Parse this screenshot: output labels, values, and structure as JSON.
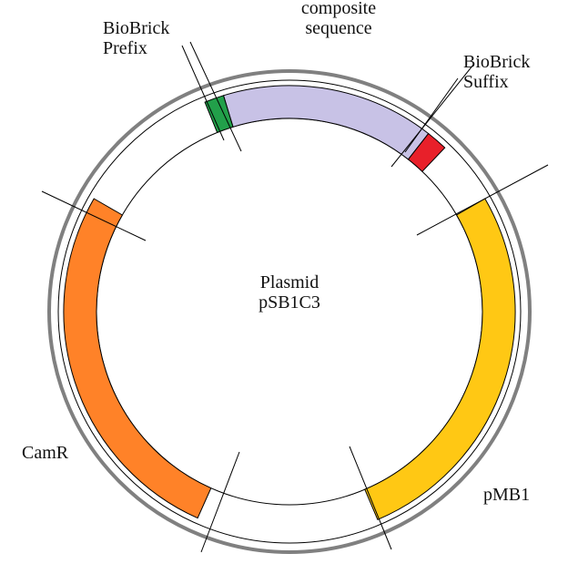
{
  "plasmid": {
    "name_line1": "Plasmid",
    "name_line2": "pSB1C3"
  },
  "features": [
    {
      "id": "composite",
      "label_line1": "composite",
      "label_line2": "sequence",
      "color": "#c8c2e6"
    },
    {
      "id": "prefix",
      "label_line1": "BioBrick",
      "label_line2": "Prefix",
      "color": "#22a04a"
    },
    {
      "id": "suffix",
      "label_line1": "BioBrick",
      "label_line2": "Suffix",
      "color": "#e8202a"
    },
    {
      "id": "pmb1",
      "label": "pMB1",
      "color": "#ffc814"
    },
    {
      "id": "camr",
      "label": "CamR",
      "color": "#ff8228"
    }
  ],
  "colors": {
    "outer_ring": "#808080",
    "inner_ring": "#000000",
    "feature_outline": "#000000"
  }
}
